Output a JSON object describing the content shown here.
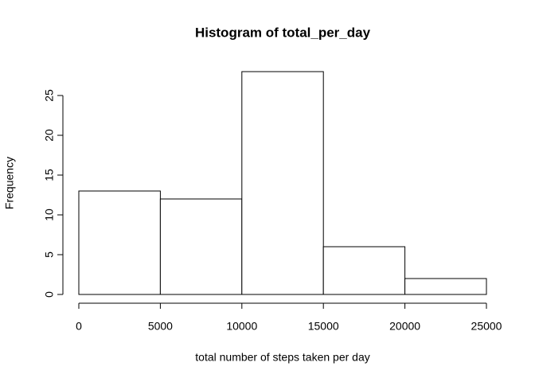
{
  "chart_data": {
    "type": "histogram",
    "title": "Histogram of total_per_day",
    "x_label": "total number of steps taken per day",
    "y_label": "Frequency",
    "bins": [
      0,
      5000,
      10000,
      15000,
      20000,
      25000
    ],
    "counts": [
      13,
      12,
      28,
      6,
      2
    ],
    "color": "#ffffff",
    "edge_color": "#000000",
    "xlim": [
      0,
      25000
    ],
    "xticks": [
      0,
      5000,
      10000,
      15000,
      20000,
      25000
    ],
    "ylim": [
      0,
      28
    ],
    "yticks": [
      0,
      5,
      10,
      15,
      20,
      25
    ]
  }
}
